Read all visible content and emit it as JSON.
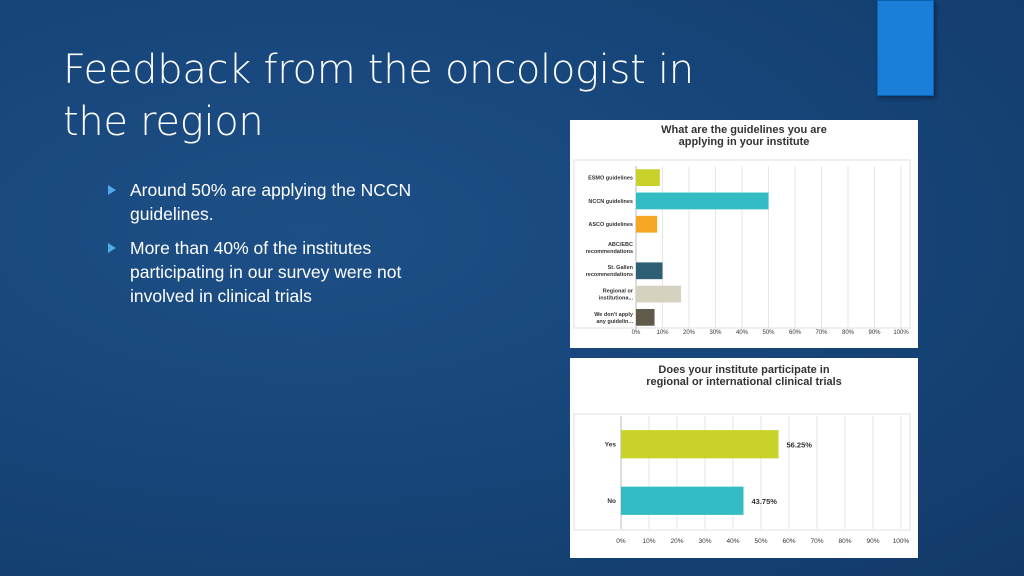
{
  "slide": {
    "title_lines": [
      "Feedback from the oncologist in",
      "the region"
    ],
    "bullets": [
      "Around 50% are applying the NCCN guidelines.",
      "More than 40% of the institutes participating in our survey were not involved in clinical trials"
    ],
    "accent_color": "#1a7fd8"
  },
  "chart_data": [
    {
      "type": "bar",
      "orientation": "horizontal",
      "title_lines": [
        "What are the guidelines you are",
        "applying in your institute"
      ],
      "categories": [
        [
          "ESMO guidelines"
        ],
        [
          "NCCN guidelines"
        ],
        [
          "ASCO guidelines"
        ],
        [
          "ABC/EBC",
          "recommendations"
        ],
        [
          "St. Gallen",
          "recommendations"
        ],
        [
          "Regional or",
          "institutiona..."
        ],
        [
          "We don't apply",
          "any guidelin..."
        ]
      ],
      "values": [
        9,
        50,
        8,
        0,
        10,
        17,
        7
      ],
      "colors": [
        "#c8d22a",
        "#33bcc4",
        "#f5a623",
        "#cccccc",
        "#2f5f74",
        "#d5d3bf",
        "#5f5a4a"
      ],
      "xlim": [
        0,
        100
      ],
      "ticks": [
        "0%",
        "10%",
        "20%",
        "30%",
        "40%",
        "50%",
        "60%",
        "70%",
        "80%",
        "90%",
        "100%"
      ],
      "grid": true
    },
    {
      "type": "bar",
      "orientation": "horizontal",
      "title_lines": [
        "Does your institute participate in",
        "regional or international clinical trials"
      ],
      "categories": [
        [
          "Yes"
        ],
        [
          "No"
        ]
      ],
      "values": [
        56.25,
        43.75
      ],
      "value_labels": [
        "56.25%",
        "43.75%"
      ],
      "colors": [
        "#c8d22a",
        "#33bcc4"
      ],
      "xlim": [
        0,
        100
      ],
      "ticks": [
        "0%",
        "10%",
        "20%",
        "30%",
        "40%",
        "50%",
        "60%",
        "70%",
        "80%",
        "90%",
        "100%"
      ],
      "grid": true
    }
  ]
}
